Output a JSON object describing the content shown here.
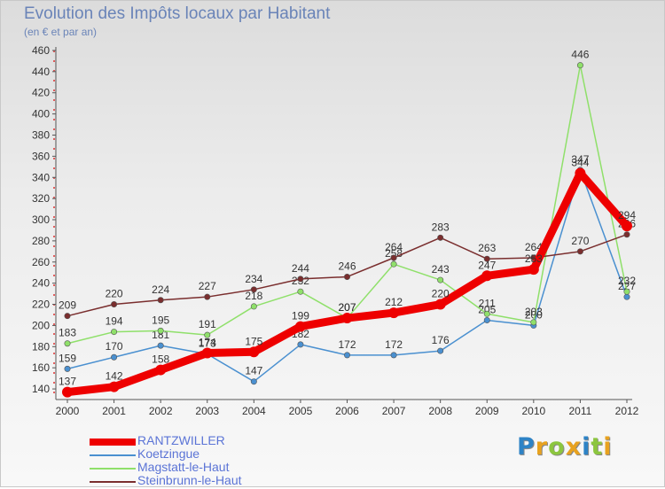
{
  "header": {
    "title": "Evolution des Impôts locaux par Habitant",
    "subtitle": "(en € et par an)"
  },
  "logo": {
    "text": "Proxiti",
    "letters": [
      {
        "ch": "P",
        "color": "#2e83c6"
      },
      {
        "ch": "r",
        "color": "#e8a21f"
      },
      {
        "ch": "o",
        "color": "#8cc63f"
      },
      {
        "ch": "x",
        "color": "#e8a21f"
      },
      {
        "ch": "i",
        "color": "#2e83c6"
      },
      {
        "ch": "t",
        "color": "#8cc63f"
      },
      {
        "ch": "i",
        "color": "#e8a21f"
      }
    ]
  },
  "chart_data": {
    "type": "line",
    "title": "Evolution des Impôts locaux par Habitant",
    "ylabel": "(en € et par an)",
    "xlabel": "",
    "categories": [
      "2000",
      "2001",
      "2002",
      "2003",
      "2004",
      "2005",
      "2006",
      "2007",
      "2008",
      "2009",
      "2010",
      "2011",
      "2012"
    ],
    "ylim": [
      130,
      465
    ],
    "yticks": [
      140,
      160,
      180,
      200,
      220,
      240,
      260,
      280,
      300,
      320,
      340,
      360,
      380,
      400,
      420,
      440,
      460
    ],
    "grid": false,
    "legend_position": "bottom-left",
    "series": [
      {
        "name": "RANTZWILLER",
        "color": "#ee0000",
        "emphasis": true,
        "values": [
          137,
          142,
          158,
          174,
          175,
          199,
          207,
          212,
          220,
          247,
          253,
          344,
          294
        ],
        "labels": [
          "137",
          "142",
          "158",
          "174",
          "175",
          "199",
          "207",
          "212",
          "220",
          "247",
          "253",
          "344",
          "294"
        ]
      },
      {
        "name": "Koetzingue",
        "color": "#4a90d0",
        "emphasis": false,
        "values": [
          159,
          170,
          181,
          173,
          147,
          182,
          172,
          172,
          176,
          205,
          200,
          347,
          227
        ],
        "labels": [
          "159",
          "170",
          "181",
          "173",
          "147",
          "182",
          "172",
          "172",
          "176",
          "205",
          "200",
          "347",
          "227"
        ]
      },
      {
        "name": "Magstatt-le-Haut",
        "color": "#8fe06a",
        "emphasis": false,
        "values": [
          183,
          194,
          195,
          191,
          218,
          232,
          207,
          258,
          243,
          211,
          203,
          446,
          232
        ],
        "labels": [
          "183",
          "194",
          "195",
          "191",
          "218",
          "232",
          "207",
          "258",
          "243",
          "211",
          "203",
          "446",
          "232"
        ]
      },
      {
        "name": "Steinbrunn-le-Haut",
        "color": "#7a2e2e",
        "emphasis": false,
        "values": [
          209,
          220,
          224,
          227,
          234,
          244,
          246,
          264,
          283,
          263,
          264,
          270,
          286
        ],
        "labels": [
          "209",
          "220",
          "224",
          "227",
          "234",
          "244",
          "246",
          "264",
          "283",
          "263",
          "264",
          "270",
          "286"
        ]
      }
    ]
  }
}
